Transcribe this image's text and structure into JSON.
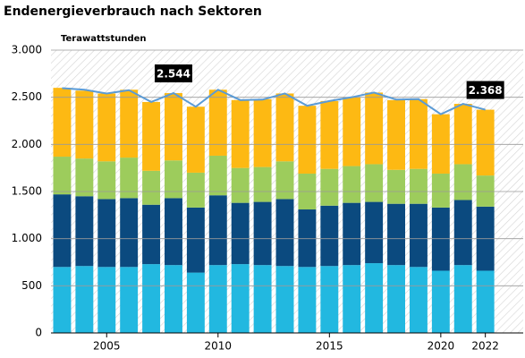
{
  "chart_data": {
    "type": "bar",
    "stacked": true,
    "title": "Endenergieverbrauch nach Sektoren",
    "y_label": "Terawattstunden",
    "x": [
      2003,
      2004,
      2005,
      2006,
      2007,
      2008,
      2009,
      2010,
      2011,
      2012,
      2013,
      2014,
      2015,
      2016,
      2017,
      2018,
      2019,
      2020,
      2021,
      2022
    ],
    "series": [
      {
        "color": "#22b8e0",
        "values": [
          700,
          710,
          700,
          700,
          730,
          720,
          640,
          720,
          730,
          720,
          710,
          700,
          710,
          720,
          740,
          720,
          700,
          660,
          720,
          660
        ]
      },
      {
        "color": "#0b4a7f",
        "values": [
          770,
          740,
          720,
          730,
          630,
          710,
          690,
          740,
          650,
          670,
          710,
          610,
          640,
          660,
          650,
          650,
          670,
          670,
          690,
          680
        ]
      },
      {
        "color": "#9dcc5c",
        "values": [
          400,
          400,
          400,
          430,
          360,
          400,
          370,
          420,
          370,
          370,
          400,
          380,
          390,
          390,
          400,
          360,
          370,
          360,
          380,
          330
        ]
      },
      {
        "color": "#fdb913",
        "values": [
          730,
          720,
          720,
          720,
          730,
          714,
          700,
          700,
          720,
          720,
          720,
          720,
          720,
          730,
          760,
          740,
          740,
          630,
          640,
          698
        ]
      },
      {
        "type": "line",
        "color": "#5b9bd5",
        "values": [
          2597,
          2580,
          2540,
          2575,
          2450,
          2544,
          2400,
          2580,
          2470,
          2475,
          2540,
          2410,
          2460,
          2500,
          2550,
          2475,
          2480,
          2320,
          2430,
          2368
        ],
        "value_labels": [
          null,
          null,
          null,
          null,
          null,
          "2.544",
          null,
          null,
          null,
          null,
          null,
          null,
          null,
          null,
          null,
          null,
          null,
          null,
          null,
          "2.368"
        ]
      }
    ],
    "xlim": [
      2002.5,
      2023.7
    ],
    "xticks": [
      2005,
      2010,
      2015,
      2020,
      2022
    ],
    "ylim": [
      0,
      3000
    ],
    "yticks": [
      0,
      500,
      {
        "value": 1000,
        "label": "1.000"
      },
      {
        "value": 1500,
        "label": "1.500"
      },
      {
        "value": 2000,
        "label": "2.000"
      },
      {
        "value": 2500,
        "label": "2.500"
      },
      {
        "value": 3000,
        "label": "3.000"
      }
    ],
    "grid": true
  }
}
